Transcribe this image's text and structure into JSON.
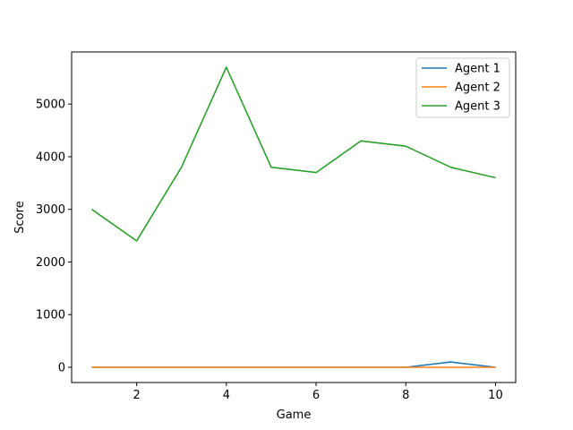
{
  "chart_data": {
    "type": "line",
    "title": "",
    "xlabel": "Game",
    "ylabel": "Score",
    "x": [
      1,
      2,
      3,
      4,
      5,
      6,
      7,
      8,
      9,
      10
    ],
    "xlim": [
      0.55,
      10.45
    ],
    "ylim": [
      -290,
      5990
    ],
    "xticks": [
      2,
      4,
      6,
      8,
      10
    ],
    "yticks": [
      0,
      1000,
      2000,
      3000,
      4000,
      5000
    ],
    "grid": false,
    "legend_position": "top-right",
    "series": [
      {
        "name": "Agent 1",
        "color": "#1f77b4",
        "values": [
          0,
          0,
          0,
          0,
          0,
          0,
          0,
          0,
          100,
          0
        ]
      },
      {
        "name": "Agent 2",
        "color": "#ff7f0e",
        "values": [
          0,
          0,
          0,
          0,
          0,
          0,
          0,
          0,
          0,
          0
        ]
      },
      {
        "name": "Agent 3",
        "color": "#2ca02c",
        "values": [
          3000,
          2400,
          3800,
          5700,
          3800,
          3700,
          4300,
          4200,
          3800,
          3600
        ]
      }
    ]
  }
}
